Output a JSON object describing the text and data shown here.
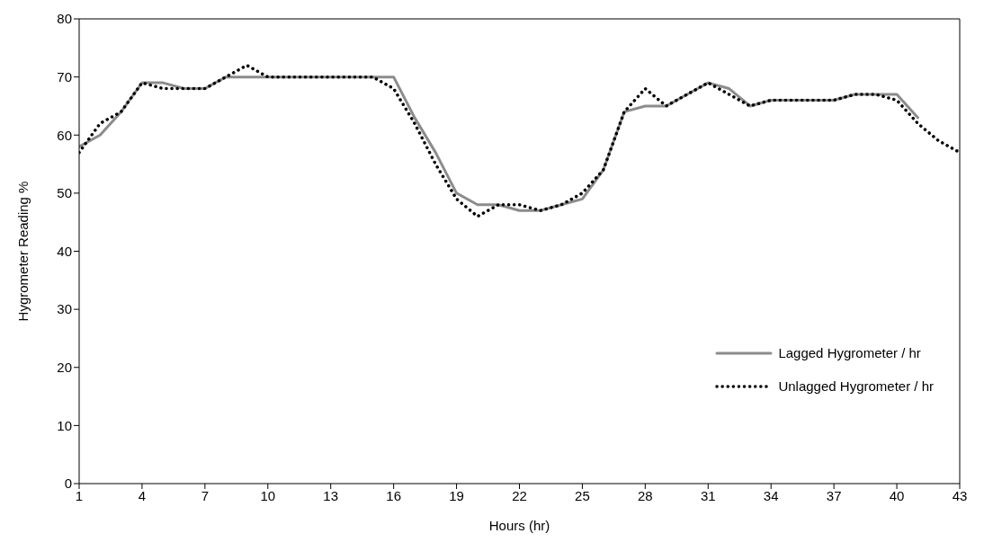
{
  "chart_data": {
    "type": "line",
    "xlabel": "Hours (hr)",
    "ylabel": "Hygrometer Reading %",
    "x": [
      1,
      2,
      3,
      4,
      5,
      6,
      7,
      8,
      9,
      10,
      11,
      12,
      13,
      14,
      15,
      16,
      17,
      18,
      19,
      20,
      21,
      22,
      23,
      24,
      25,
      26,
      27,
      28,
      29,
      30,
      31,
      32,
      33,
      34,
      35,
      36,
      37,
      38,
      39,
      40,
      41,
      42,
      43
    ],
    "xlim": [
      1,
      43
    ],
    "xticks": [
      1,
      4,
      7,
      10,
      13,
      16,
      19,
      22,
      25,
      28,
      31,
      34,
      37,
      40,
      43
    ],
    "ylim": [
      0,
      80
    ],
    "yticks": [
      0,
      10,
      20,
      30,
      40,
      50,
      60,
      70,
      80
    ],
    "grid": false,
    "legend": "bottom right",
    "marker": "none",
    "series": [
      {
        "name": "Lagged Hygrometer / hr",
        "color": "#8c8c8c",
        "line_style": "solid",
        "values": [
          58,
          60,
          64,
          69,
          69,
          68,
          68,
          70,
          70,
          70,
          70,
          70,
          70,
          70,
          70,
          70,
          63,
          57,
          50,
          48,
          48,
          47,
          47,
          48,
          49,
          54,
          64,
          65,
          65,
          67,
          69,
          68,
          65,
          66,
          66,
          66,
          66,
          67,
          67,
          67,
          63,
          null,
          null
        ]
      },
      {
        "name": "Unlagged Hygrometer / hr",
        "color": "#000000",
        "line_style": "dotted",
        "values": [
          57,
          62,
          64,
          69,
          68,
          68,
          68,
          70,
          72,
          70,
          70,
          70,
          70,
          70,
          70,
          68,
          62,
          55,
          49,
          46,
          48,
          48,
          47,
          48,
          50,
          54,
          64,
          68,
          65,
          67,
          69,
          67,
          65,
          66,
          66,
          66,
          66,
          67,
          67,
          66,
          62,
          59,
          57
        ]
      }
    ]
  }
}
